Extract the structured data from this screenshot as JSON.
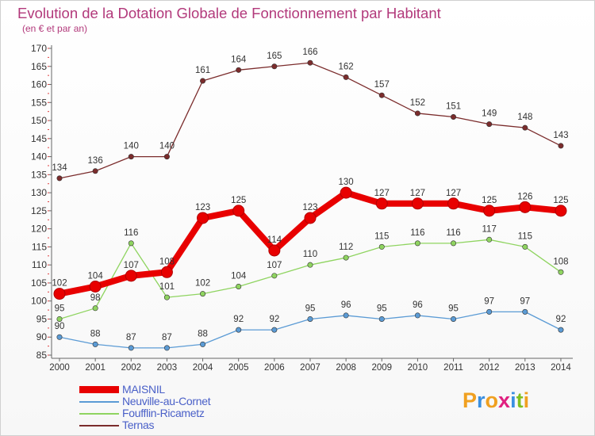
{
  "header": {
    "title": "Evolution de la Dotation Globale de Fonctionnement par Habitant",
    "subtitle": "(en € et par an)"
  },
  "logo": {
    "text": "Proxiti",
    "colors": [
      "#f0a020",
      "#3a8fe0",
      "#f0a020",
      "#e02080",
      "#3a8fe0",
      "#80c020",
      "#f0a020"
    ]
  },
  "chart_data": {
    "type": "line",
    "x": [
      "2000",
      "2001",
      "2002",
      "2003",
      "2004",
      "2005",
      "2006",
      "2007",
      "2008",
      "2009",
      "2010",
      "2011",
      "2012",
      "2013",
      "2014"
    ],
    "ylim": [
      85,
      170
    ],
    "yticks": [
      85,
      90,
      95,
      100,
      105,
      110,
      115,
      120,
      125,
      130,
      135,
      140,
      145,
      150,
      155,
      160,
      165,
      170
    ],
    "grid": false,
    "legend": "bottom-left",
    "series": [
      {
        "name": "MAISNIL",
        "color": "#e80000",
        "values": [
          102,
          104,
          107,
          108,
          123,
          125,
          114,
          123,
          130,
          127,
          127,
          127,
          125,
          126,
          125
        ]
      },
      {
        "name": "Neuville-au-Cornet",
        "color": "#5b9bd5",
        "values": [
          90,
          88,
          87,
          87,
          88,
          92,
          92,
          95,
          96,
          95,
          96,
          95,
          97,
          97,
          92
        ]
      },
      {
        "name": "Foufflin-Ricametz",
        "color": "#8fd460",
        "values": [
          95,
          98,
          116,
          101,
          102,
          104,
          107,
          110,
          112,
          115,
          116,
          116,
          117,
          115,
          108
        ]
      },
      {
        "name": "Ternas",
        "color": "#7b2c2c",
        "values": [
          134,
          136,
          140,
          140,
          161,
          164,
          165,
          166,
          162,
          157,
          152,
          151,
          149,
          148,
          143
        ]
      }
    ]
  }
}
